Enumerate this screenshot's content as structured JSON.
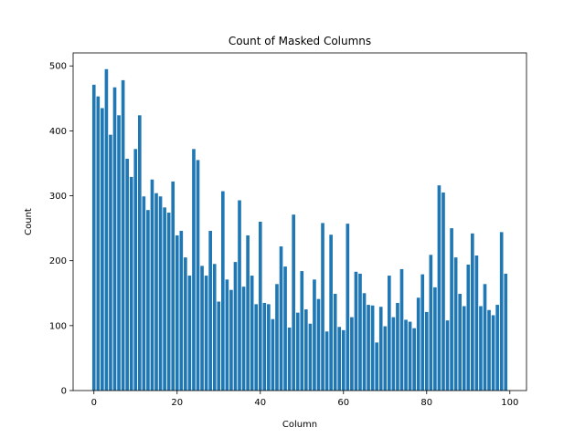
{
  "chart_data": {
    "type": "bar",
    "title": "Count of Masked Columns",
    "xlabel": "Column",
    "ylabel": "Count",
    "xlim": [
      -5,
      104
    ],
    "ylim": [
      0,
      520
    ],
    "xticks": [
      0,
      20,
      40,
      60,
      80,
      100
    ],
    "yticks": [
      0,
      100,
      200,
      300,
      400,
      500
    ],
    "grid": false,
    "color": "#1f77b4",
    "x": [
      0,
      1,
      2,
      3,
      4,
      5,
      6,
      7,
      8,
      9,
      10,
      11,
      12,
      13,
      14,
      15,
      16,
      17,
      18,
      19,
      20,
      21,
      22,
      23,
      24,
      25,
      26,
      27,
      28,
      29,
      30,
      31,
      32,
      33,
      34,
      35,
      36,
      37,
      38,
      39,
      40,
      41,
      42,
      43,
      44,
      45,
      46,
      47,
      48,
      49,
      50,
      51,
      52,
      53,
      54,
      55,
      56,
      57,
      58,
      59,
      60,
      61,
      62,
      63,
      64,
      65,
      66,
      67,
      68,
      69,
      70,
      71,
      72,
      73,
      74,
      75,
      76,
      77,
      78,
      79,
      80,
      81,
      82,
      83,
      84,
      85,
      86,
      87,
      88,
      89,
      90,
      91,
      92,
      93,
      94,
      95,
      96,
      97,
      98,
      99
    ],
    "values": [
      471,
      453,
      435,
      495,
      394,
      467,
      424,
      478,
      357,
      329,
      372,
      424,
      299,
      278,
      325,
      304,
      299,
      282,
      274,
      322,
      239,
      246,
      205,
      177,
      372,
      355,
      192,
      177,
      246,
      195,
      137,
      307,
      171,
      155,
      198,
      293,
      160,
      239,
      177,
      133,
      260,
      135,
      133,
      110,
      164,
      222,
      191,
      97,
      271,
      120,
      184,
      125,
      103,
      171,
      141,
      258,
      91,
      240,
      149,
      98,
      93,
      257,
      113,
      183,
      180,
      150,
      132,
      131,
      74,
      129,
      99,
      177,
      113,
      135,
      187,
      109,
      106,
      96,
      143,
      179,
      121,
      209,
      159,
      316,
      305,
      108,
      250,
      205,
      149,
      130,
      194,
      242,
      208,
      130,
      164,
      124,
      116,
      132,
      244,
      180
    ]
  }
}
